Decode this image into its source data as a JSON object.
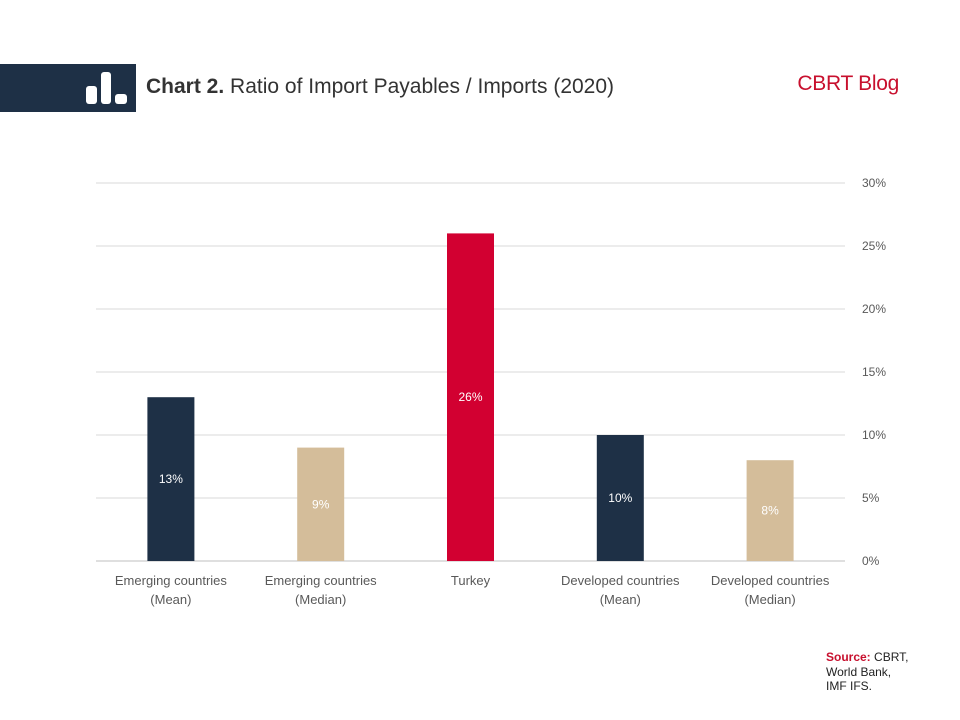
{
  "header": {
    "title_prefix": "Chart 2.",
    "title_text": "Ratio of Import Payables / Imports (2020)",
    "brand": "CBRT Blog",
    "logo_icon": "bar-chart-icon"
  },
  "chart_data": {
    "type": "bar",
    "categories": [
      [
        "Emerging countries",
        "(Mean)"
      ],
      [
        "Emerging countries",
        "(Median)"
      ],
      [
        "Turkey"
      ],
      [
        "Developed countries",
        "(Mean)"
      ],
      [
        "Developed countries",
        "(Median)"
      ]
    ],
    "values": [
      13,
      9,
      26,
      10,
      8
    ],
    "data_labels": [
      "13%",
      "9%",
      "26%",
      "10%",
      "8%"
    ],
    "bar_colors": [
      "#1e3046",
      "#d4bd9a",
      "#d20031",
      "#1e3046",
      "#d4bd9a"
    ],
    "label_colors": [
      "#ffffff",
      "#ffffff",
      "#ffffff",
      "#ffffff",
      "#ffffff"
    ],
    "ylim": [
      0,
      30
    ],
    "yticks": [
      0,
      5,
      10,
      15,
      20,
      25,
      30
    ],
    "ytick_labels": [
      "0%",
      "5%",
      "10%",
      "15%",
      "20%",
      "25%",
      "30%"
    ],
    "y_axis_side": "right",
    "grid": true
  },
  "source": {
    "label": "Source:",
    "lines": [
      "CBRT,",
      "World Bank,",
      "IMF IFS."
    ]
  }
}
